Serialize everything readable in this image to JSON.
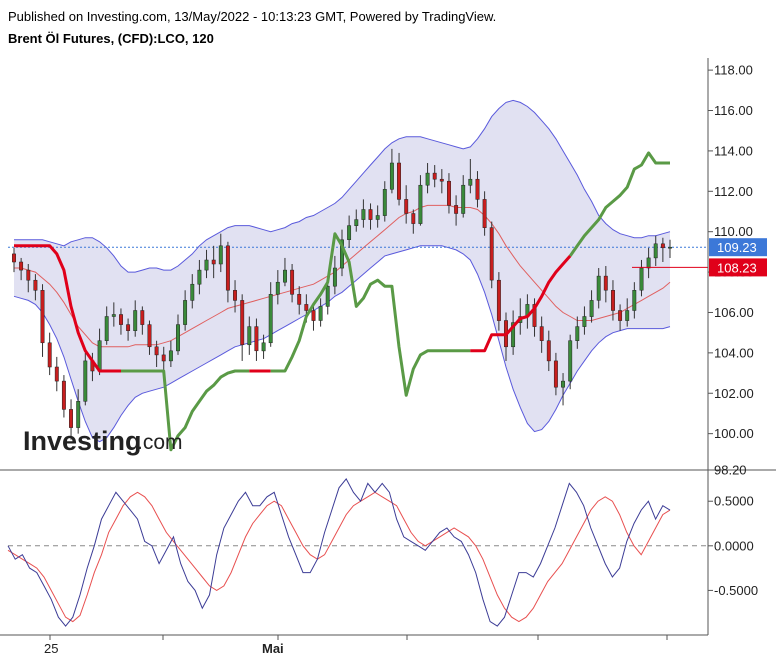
{
  "header": {
    "published_line": "Published on Investing.com, 13/May/2022 - 10:13:23 GMT, Powered by TradingView.",
    "symbol_line": "Brent Öl Futures, (CFD):LCO, 120"
  },
  "logo": {
    "brand": "Investing",
    "suffix": ".com"
  },
  "colors": {
    "band_fill": "#dcdcf0",
    "band_line": "#5a5adc",
    "ma_line": "#e06060",
    "supertrend_down": "#e0001a",
    "supertrend_up": "#5a9a46",
    "candle_up": "#3a8a3a",
    "candle_down": "#c81e1e",
    "last_price_tag": "#3c78d8",
    "marker_tag": "#e0001a",
    "osc_fast": "#3c3c96",
    "osc_slow": "#e85050"
  },
  "chart_data": [
    {
      "type": "candlestick",
      "title": "Brent Öl Futures, (CFD):LCO, 120",
      "y_ticks": [
        "118.00",
        "116.00",
        "114.00",
        "112.00",
        "110.00",
        "108.00",
        "106.00",
        "104.00",
        "102.00",
        "100.00",
        "98.20"
      ],
      "ylim": [
        98.2,
        118.6
      ],
      "x_labels": [
        "25",
        "Mai"
      ],
      "last_price": {
        "value": 109.23,
        "label": "109.23"
      },
      "marker_price": {
        "value": 108.23,
        "label": "108.23"
      },
      "close": [
        108.5,
        108.1,
        107.6,
        107.1,
        104.5,
        103.3,
        102.6,
        101.2,
        100.3,
        101.6,
        103.6,
        103.1,
        104.6,
        105.8,
        105.9,
        105.4,
        105.1,
        106.1,
        105.4,
        104.3,
        103.9,
        103.6,
        104.1,
        105.4,
        106.6,
        107.4,
        108.1,
        108.6,
        108.4,
        109.3,
        107.1,
        106.6,
        104.4,
        105.3,
        104.1,
        104.5,
        106.9,
        107.5,
        108.1,
        106.9,
        106.4,
        106.1,
        105.6,
        106.3,
        107.3,
        108.2,
        109.6,
        110.3,
        110.6,
        111.1,
        110.6,
        110.8,
        112.1,
        113.4,
        111.6,
        110.9,
        110.4,
        112.3,
        112.9,
        112.6,
        112.5,
        111.3,
        110.9,
        112.3,
        112.6,
        111.6,
        110.2,
        107.6,
        105.6,
        104.3,
        105.5,
        105.8,
        106.4,
        105.3,
        104.6,
        103.6,
        102.3,
        102.6,
        104.6,
        105.3,
        105.8,
        106.6,
        107.8,
        107.1,
        106.1,
        105.6,
        106.1,
        107.1,
        108.2,
        108.7,
        109.4,
        109.2,
        109.23
      ],
      "range": [
        [
          108,
          109.2
        ],
        [
          107.6,
          108.7
        ],
        [
          107,
          108.4
        ],
        [
          106.6,
          107.9
        ],
        [
          103.8,
          107.4
        ],
        [
          102.9,
          105
        ],
        [
          102.1,
          103.8
        ],
        [
          100.8,
          102.9
        ],
        [
          99.7,
          101.7
        ],
        [
          100,
          102.2
        ],
        [
          101.4,
          104
        ],
        [
          102.6,
          104
        ],
        [
          102.9,
          105.2
        ],
        [
          104.4,
          106.3
        ],
        [
          105.3,
          106.5
        ],
        [
          104.9,
          106.2
        ],
        [
          104.6,
          105.7
        ],
        [
          104.8,
          106.6
        ],
        [
          104.9,
          106.3
        ],
        [
          103.9,
          105.6
        ],
        [
          103.3,
          104.6
        ],
        [
          103.1,
          104.3
        ],
        [
          103.3,
          104.6
        ],
        [
          103.9,
          105.9
        ],
        [
          105.1,
          107.1
        ],
        [
          106.2,
          107.9
        ],
        [
          106.9,
          108.6
        ],
        [
          107.7,
          109.1
        ],
        [
          107.7,
          109.3
        ],
        [
          108,
          109.9
        ],
        [
          106.5,
          109.5
        ],
        [
          106,
          107.6
        ],
        [
          103.6,
          106.9
        ],
        [
          103.9,
          105.8
        ],
        [
          103.6,
          105.7
        ],
        [
          103.7,
          104.9
        ],
        [
          104.3,
          107.5
        ],
        [
          106.4,
          108.1
        ],
        [
          107.3,
          108.7
        ],
        [
          106.5,
          108.4
        ],
        [
          105.9,
          107.3
        ],
        [
          105.5,
          106.9
        ],
        [
          105.1,
          106.4
        ],
        [
          105.3,
          106.7
        ],
        [
          105.9,
          107.7
        ],
        [
          106.9,
          108.8
        ],
        [
          107.8,
          110.1
        ],
        [
          109.2,
          110.8
        ],
        [
          110,
          111.1
        ],
        [
          110.2,
          111.6
        ],
        [
          110.1,
          111.4
        ],
        [
          110.2,
          111.3
        ],
        [
          110.5,
          112.5
        ],
        [
          111.9,
          114.1
        ],
        [
          111.3,
          113.9
        ],
        [
          110.4,
          112.3
        ],
        [
          109.9,
          111.1
        ],
        [
          110.3,
          112.8
        ],
        [
          111.9,
          113.4
        ],
        [
          112.2,
          113.3
        ],
        [
          111.9,
          113.1
        ],
        [
          110.9,
          112.9
        ],
        [
          110.3,
          111.8
        ],
        [
          110.7,
          112.8
        ],
        [
          111.9,
          113.6
        ],
        [
          111.2,
          113
        ],
        [
          109.8,
          112
        ],
        [
          107.2,
          110.5
        ],
        [
          105.1,
          108
        ],
        [
          103.6,
          106
        ],
        [
          103.9,
          106.1
        ],
        [
          104.9,
          106.7
        ],
        [
          105.2,
          106.9
        ],
        [
          104.8,
          106.7
        ],
        [
          104,
          105.8
        ],
        [
          103.1,
          105.1
        ],
        [
          101.9,
          104
        ],
        [
          101.4,
          103
        ],
        [
          102.2,
          104.9
        ],
        [
          104.2,
          105.8
        ],
        [
          104.9,
          106.3
        ],
        [
          105.5,
          107.1
        ],
        [
          106.2,
          108.2
        ],
        [
          106.5,
          108.3
        ],
        [
          105.6,
          107.6
        ],
        [
          105.1,
          106.4
        ],
        [
          105.3,
          106.7
        ],
        [
          105.7,
          107.5
        ],
        [
          106.8,
          108.6
        ],
        [
          107.7,
          109.2
        ],
        [
          108.3,
          109.8
        ],
        [
          108.5,
          109.7
        ],
        [
          108.7,
          109.6
        ]
      ],
      "bollinger_upper": [
        109.6,
        109.6,
        109.6,
        109.6,
        109.6,
        109.5,
        109.4,
        109.3,
        109.5,
        109.6,
        109.7,
        109.7,
        109.5,
        109.2,
        108.8,
        108.3,
        108.0,
        108.0,
        108.1,
        108.2,
        108.2,
        108.1,
        108.1,
        108.3,
        108.6,
        108.9,
        109.3,
        109.6,
        109.8,
        110.0,
        110.2,
        110.3,
        110.3,
        110.3,
        110.2,
        110.1,
        110.0,
        110.1,
        110.2,
        110.4,
        110.5,
        110.7,
        110.8,
        111.0,
        111.2,
        111.4,
        111.7,
        112.1,
        112.5,
        112.9,
        113.3,
        113.7,
        114.1,
        114.4,
        114.6,
        114.7,
        114.7,
        114.7,
        114.6,
        114.5,
        114.4,
        114.3,
        114.2,
        114.1,
        114.2,
        114.6,
        115.1,
        115.7,
        116.1,
        116.4,
        116.5,
        116.4,
        116.2,
        115.9,
        115.5,
        115.1,
        114.6,
        114.0,
        113.4,
        112.8,
        112.1,
        111.5,
        110.8,
        110.4,
        110.1,
        109.9,
        109.8,
        109.7,
        109.7,
        109.8,
        109.8,
        109.9,
        110.0
      ],
      "bollinger_middle": [
        108.2,
        108.2,
        108.1,
        108.0,
        107.7,
        107.4,
        107.0,
        106.5,
        105.9,
        105.3,
        104.9,
        104.5,
        104.3,
        104.3,
        104.3,
        104.3,
        104.3,
        104.4,
        104.4,
        104.4,
        104.4,
        104.5,
        104.6,
        104.8,
        105.0,
        105.2,
        105.4,
        105.6,
        105.8,
        106.0,
        106.2,
        106.3,
        106.4,
        106.5,
        106.6,
        106.7,
        106.8,
        106.9,
        107.0,
        107.1,
        107.2,
        107.3,
        107.4,
        107.6,
        107.8,
        108.0,
        108.3,
        108.6,
        108.9,
        109.2,
        109.5,
        109.8,
        110.1,
        110.4,
        110.7,
        110.9,
        111.0,
        111.2,
        111.3,
        111.3,
        111.3,
        111.3,
        111.2,
        111.2,
        111.2,
        111.1,
        110.8,
        110.4,
        109.9,
        109.3,
        108.8,
        108.3,
        107.9,
        107.5,
        107.1,
        106.7,
        106.3,
        106.0,
        105.8,
        105.6,
        105.6,
        105.6,
        105.7,
        105.8,
        105.9,
        106.0,
        106.2,
        106.4,
        106.6,
        106.8,
        107.0,
        107.2,
        107.5
      ],
      "bollinger_lower": [
        106.8,
        106.7,
        106.6,
        106.4,
        106.0,
        105.4,
        104.7,
        103.8,
        102.7,
        101.6,
        100.6,
        99.8,
        99.6,
        99.8,
        100.3,
        100.9,
        101.4,
        101.8,
        102.0,
        102.1,
        102.2,
        102.3,
        102.5,
        102.7,
        102.9,
        103.1,
        103.3,
        103.5,
        103.7,
        103.9,
        104.1,
        104.3,
        104.4,
        104.5,
        104.6,
        104.7,
        104.9,
        105.1,
        105.3,
        105.5,
        105.7,
        105.9,
        106.1,
        106.3,
        106.5,
        106.8,
        107.0,
        107.3,
        107.6,
        107.9,
        108.2,
        108.5,
        108.8,
        108.9,
        109.0,
        109.1,
        109.2,
        109.3,
        109.3,
        109.3,
        109.3,
        109.2,
        109.1,
        108.9,
        108.6,
        107.9,
        107.0,
        105.9,
        104.6,
        103.3,
        102.2,
        101.3,
        100.5,
        100.1,
        100.2,
        100.6,
        101.2,
        101.9,
        102.5,
        103.1,
        103.6,
        104.1,
        104.5,
        104.8,
        105.0,
        105.1,
        105.2,
        105.2,
        105.2,
        105.2,
        105.2,
        105.2,
        105.3
      ],
      "supertrend": [
        109.3,
        109.3,
        109.3,
        109.3,
        109.3,
        109.3,
        108.9,
        108.1,
        106.3,
        105.0,
        104.1,
        103.6,
        103.1,
        103.1,
        103.1,
        103.1,
        103.1,
        103.1,
        103.1,
        103.1,
        103.1,
        103.1,
        99.2,
        99.9,
        100.3,
        101.1,
        101.6,
        102.1,
        102.4,
        102.8,
        103.0,
        103.1,
        103.1,
        103.1,
        103.1,
        103.1,
        103.1,
        103.1,
        103.1,
        103.8,
        104.6,
        105.8,
        106.4,
        106.9,
        107.5,
        109.9,
        109.3,
        108.5,
        106.3,
        106.7,
        107.4,
        107.6,
        107.3,
        107.3,
        104.3,
        101.9,
        103.2,
        103.9,
        104.1,
        104.1,
        104.1,
        104.1,
        104.1,
        104.1,
        104.1,
        104.1,
        104.1,
        104.9,
        104.9,
        104.9,
        105.3,
        105.7,
        105.8,
        106.2,
        106.8,
        107.5,
        108.0,
        108.4,
        108.8,
        109.3,
        109.8,
        110.2,
        110.6,
        111.2,
        111.5,
        111.8,
        112.2,
        113.1,
        113.3,
        113.9,
        113.4,
        113.4,
        113.4
      ],
      "supertrend_direction": [
        "down",
        "down",
        "down",
        "down",
        "down",
        "down",
        "down",
        "down",
        "down",
        "down",
        "down",
        "down",
        "down",
        "down",
        "down",
        "up",
        "up",
        "up",
        "up",
        "up",
        "up",
        "up",
        "up",
        "up",
        "up",
        "up",
        "up",
        "up",
        "up",
        "up",
        "up",
        "up",
        "up",
        "down",
        "down",
        "down",
        "up",
        "up",
        "up",
        "up",
        "up",
        "up",
        "up",
        "up",
        "up",
        "up",
        "up",
        "up",
        "up",
        "up",
        "up",
        "up",
        "up",
        "up",
        "up",
        "up",
        "up",
        "up",
        "up",
        "up",
        "up",
        "up",
        "up",
        "up",
        "down",
        "down",
        "down",
        "down",
        "down",
        "down",
        "down",
        "down",
        "down",
        "down",
        "down",
        "down",
        "down",
        "down",
        "up",
        "up",
        "up",
        "up",
        "up",
        "up",
        "up",
        "up",
        "up",
        "up",
        "up",
        "up",
        "up",
        "up",
        "up"
      ]
    },
    {
      "type": "line",
      "y_ticks": [
        "0.5000",
        "0.0000",
        "-0.5000"
      ],
      "ylim": [
        -1.0,
        0.85
      ],
      "zero_line": 0,
      "series": [
        {
          "values": [
            -0.05,
            -0.1,
            -0.15,
            -0.2,
            -0.25,
            -0.35,
            -0.5,
            -0.65,
            -0.8,
            -0.85,
            -0.78,
            -0.55,
            -0.3,
            -0.1,
            0.15,
            0.3,
            0.45,
            0.55,
            0.6,
            0.55,
            0.45,
            0.3,
            0.15,
            0.05,
            -0.05,
            -0.15,
            -0.25,
            -0.35,
            -0.45,
            -0.5,
            -0.45,
            -0.3,
            -0.1,
            0.1,
            0.25,
            0.35,
            0.45,
            0.5,
            0.45,
            0.3,
            0.15,
            0.0,
            -0.1,
            -0.15,
            -0.1,
            0.05,
            0.2,
            0.35,
            0.45,
            0.5,
            0.55,
            0.6,
            0.55,
            0.5,
            0.45,
            0.3,
            0.15,
            0.05,
            0.0,
            0.05,
            0.1,
            0.15,
            0.2,
            0.15,
            0.1,
            0.0,
            -0.15,
            -0.35,
            -0.55,
            -0.7,
            -0.8,
            -0.85,
            -0.8,
            -0.7,
            -0.55,
            -0.4,
            -0.3,
            -0.2,
            -0.05,
            0.1,
            0.25,
            0.4,
            0.5,
            0.55,
            0.5,
            0.35,
            0.15,
            0.0,
            -0.1,
            0.05,
            0.2,
            0.35,
            0.4
          ]
        },
        {
          "values": [
            0.0,
            -0.15,
            -0.1,
            -0.25,
            -0.3,
            -0.45,
            -0.6,
            -0.8,
            -0.9,
            -0.8,
            -0.55,
            -0.25,
            0.0,
            0.3,
            0.45,
            0.6,
            0.5,
            0.4,
            0.3,
            0.05,
            0.0,
            -0.2,
            -0.05,
            0.1,
            -0.2,
            -0.4,
            -0.5,
            -0.7,
            -0.55,
            -0.1,
            0.2,
            0.35,
            0.5,
            0.6,
            0.45,
            0.45,
            0.55,
            0.6,
            0.35,
            0.1,
            -0.1,
            -0.3,
            -0.3,
            -0.15,
            0.15,
            0.4,
            0.65,
            0.75,
            0.6,
            0.5,
            0.7,
            0.6,
            0.7,
            0.6,
            0.3,
            0.1,
            0.05,
            0.0,
            -0.05,
            0.05,
            0.15,
            0.2,
            0.1,
            0.05,
            -0.1,
            -0.3,
            -0.6,
            -0.85,
            -0.9,
            -0.8,
            -0.55,
            -0.3,
            -0.3,
            -0.35,
            -0.2,
            0.0,
            0.2,
            0.45,
            0.7,
            0.6,
            0.45,
            0.2,
            0.0,
            -0.2,
            -0.35,
            -0.25,
            0.05,
            0.25,
            0.4,
            0.5,
            0.3,
            0.45,
            0.4
          ]
        }
      ]
    }
  ]
}
